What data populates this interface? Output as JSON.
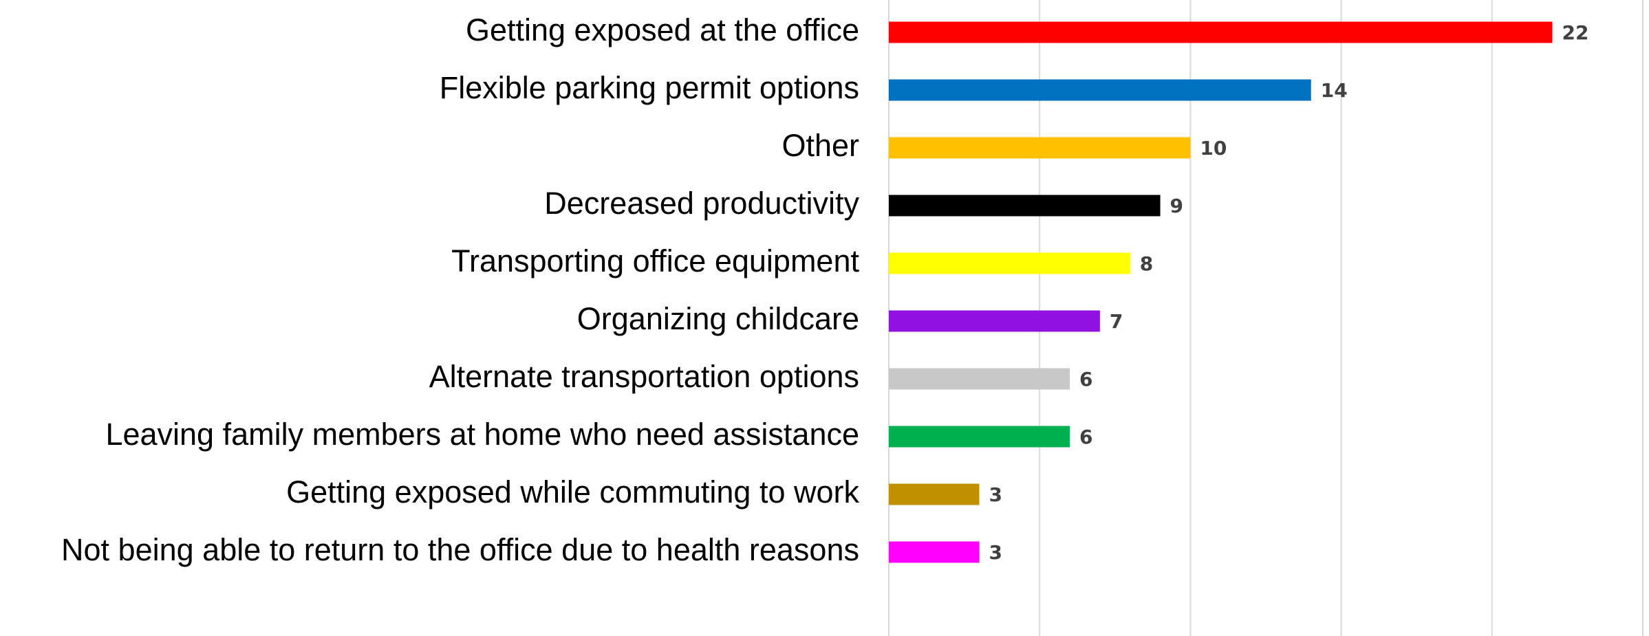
{
  "chart_data": {
    "type": "barh",
    "categories": [
      "Getting exposed at the office",
      "Flexible parking permit options",
      "Other",
      "Decreased productivity",
      "Transporting office equipment",
      "Organizing childcare",
      "Alternate transportation options",
      "Leaving family members at home who need assistance",
      "Getting exposed while commuting to work",
      "Not being able to return to the office due to health reasons"
    ],
    "values": [
      22,
      14,
      10,
      9,
      8,
      7,
      6,
      6,
      3,
      3
    ],
    "colors": [
      "#ff0000",
      "#0070c0",
      "#ffc000",
      "#000000",
      "#ffff00",
      "#8f12e0",
      "#c8c8c8",
      "#00b050",
      "#bf9000",
      "#ff00ff"
    ],
    "xlim": [
      0,
      25
    ],
    "xticks": [
      0,
      5,
      10,
      15,
      20,
      25
    ],
    "grid": true
  }
}
